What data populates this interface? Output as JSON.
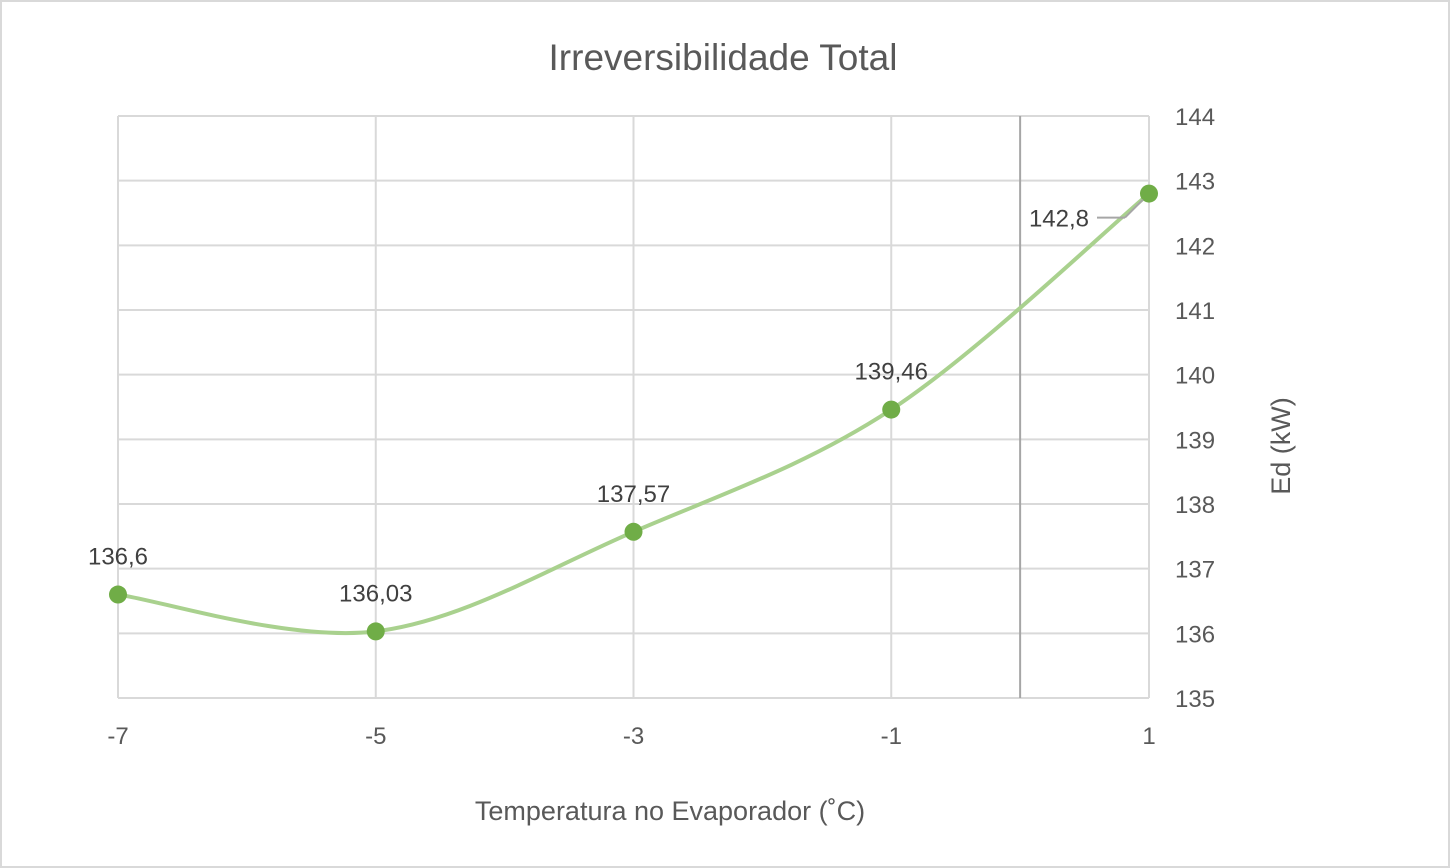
{
  "chart_data": {
    "type": "line",
    "title": "Irreversibilidade Total",
    "xlabel": "Temperatura no Evaporador (˚C)",
    "ylabel": "Ed (kW)",
    "x": [
      -7,
      -5,
      -3,
      -1,
      1
    ],
    "x_ticks": [
      "-7",
      "-5",
      "-3",
      "-1",
      "1"
    ],
    "xlim": [
      -7,
      1
    ],
    "ylim": [
      135,
      144
    ],
    "y_ticks": [
      "135",
      "136",
      "137",
      "138",
      "139",
      "140",
      "141",
      "142",
      "143",
      "144"
    ],
    "y_axis_side": "right",
    "grid": true,
    "smooth": true,
    "series": [
      {
        "values": [
          136.6,
          136.03,
          137.57,
          139.46,
          142.8
        ],
        "data_labels": [
          "136,6",
          "136,03",
          "137,57",
          "139,46",
          "142,8"
        ],
        "line_color": "#a9d18e",
        "marker_color": "#70ad47"
      }
    ],
    "reference_line_x": 0
  }
}
